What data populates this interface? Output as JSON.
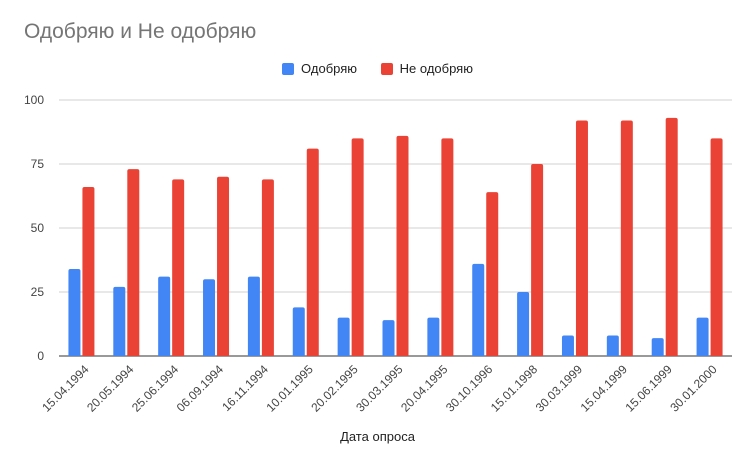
{
  "chart_data": {
    "type": "bar",
    "title": "Одобряю и Не одобряю",
    "xlabel": "Дата опроса",
    "ylabel": "",
    "ylim": [
      0,
      100
    ],
    "yticks": [
      0,
      25,
      50,
      75,
      100
    ],
    "grid": true,
    "legend_position": "top-center",
    "categories": [
      "15.04.1994",
      "20.05.1994",
      "25.06.1994",
      "06.09.1994",
      "16.11.1994",
      "10.01.1995",
      "20.02.1995",
      "30.03.1995",
      "20.04.1995",
      "30.10.1996",
      "15.01.1998",
      "30.03.1999",
      "15.04.1999",
      "15.06.1999",
      "30.01.2000"
    ],
    "series": [
      {
        "name": "Одобряю",
        "color": "#4285f4",
        "values": [
          34,
          27,
          31,
          30,
          31,
          19,
          15,
          14,
          15,
          36,
          25,
          8,
          8,
          7,
          15
        ]
      },
      {
        "name": "Не одобряю",
        "color": "#ea4335",
        "values": [
          66,
          73,
          69,
          70,
          69,
          81,
          85,
          86,
          85,
          64,
          75,
          92,
          92,
          93,
          85
        ]
      }
    ]
  }
}
